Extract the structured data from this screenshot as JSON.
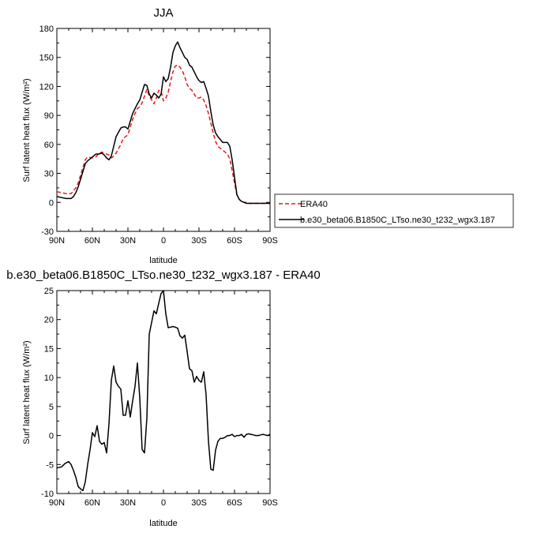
{
  "chart_data": [
    {
      "type": "line",
      "title": "JJA",
      "xlabel": "latitude",
      "ylabel": "Surf latent heat flux (W/m²)",
      "xlim": [
        90,
        -90
      ],
      "ylim": [
        -30,
        180
      ],
      "xticks": [
        90,
        60,
        30,
        0,
        -30,
        -60,
        -90
      ],
      "xtick_labels": [
        "90N",
        "60N",
        "30N",
        "0",
        "30S",
        "60S",
        "90S"
      ],
      "yticks": [
        -30,
        0,
        30,
        60,
        90,
        120,
        150,
        180
      ],
      "ytick_labels": [
        "-30",
        "0",
        "30",
        "60",
        "90",
        "120",
        "150",
        "180"
      ],
      "legend_position": "outside-right",
      "series": [
        {
          "name": "ERA40",
          "color": "#e31a1c",
          "dash": "dashed",
          "x": [
            90,
            86,
            82,
            78,
            76,
            74,
            72,
            70,
            68,
            66,
            64,
            60,
            57,
            55,
            52,
            50,
            48,
            46,
            44,
            42,
            40,
            36,
            34,
            32,
            30,
            28,
            26,
            24,
            22,
            20,
            18,
            16,
            14,
            12,
            10,
            8,
            6,
            4,
            2,
            0,
            -2,
            -4,
            -6,
            -8,
            -10,
            -12,
            -14,
            -16,
            -18,
            -20,
            -22,
            -24,
            -26,
            -28,
            -30,
            -32,
            -34,
            -36,
            -38,
            -40,
            -42,
            -44,
            -46,
            -48,
            -50,
            -52,
            -54,
            -56,
            -58,
            -60,
            -62,
            -64,
            -66,
            -68,
            -70,
            -72,
            -74,
            -76,
            -80,
            -84,
            -88,
            -90
          ],
          "y": [
            11,
            10,
            9,
            9,
            12,
            15,
            20,
            28,
            36,
            44,
            47,
            46,
            47,
            50,
            52,
            51,
            50,
            49,
            46,
            48,
            51,
            60,
            66,
            68,
            70,
            78,
            86,
            92,
            97,
            99,
            103,
            110,
            117,
            110,
            106,
            102,
            108,
            116,
            115,
            105,
            108,
            114,
            125,
            135,
            141,
            142,
            140,
            136,
            130,
            122,
            118,
            116,
            112,
            108,
            108,
            109,
            106,
            100,
            92,
            82,
            72,
            63,
            58,
            56,
            54,
            52,
            50,
            45,
            33,
            20,
            8,
            3,
            1,
            0,
            0,
            -1,
            -1,
            -1,
            -1,
            -1,
            -1,
            -1
          ]
        },
        {
          "name": "b.e30_beta06.B1850C_LTso.ne30_t232_wgx3.187",
          "color": "#000000",
          "dash": "solid",
          "x": [
            90,
            86,
            82,
            78,
            76,
            74,
            72,
            70,
            68,
            66,
            64,
            60,
            57,
            55,
            52,
            50,
            48,
            46,
            44,
            42,
            40,
            36,
            34,
            32,
            30,
            28,
            26,
            24,
            22,
            20,
            18,
            16,
            14,
            12,
            10,
            8,
            6,
            4,
            2,
            0,
            -2,
            -4,
            -6,
            -8,
            -10,
            -12,
            -14,
            -16,
            -18,
            -20,
            -22,
            -24,
            -26,
            -28,
            -30,
            -32,
            -34,
            -36,
            -38,
            -40,
            -42,
            -44,
            -46,
            -48,
            -50,
            -52,
            -54,
            -56,
            -58,
            -60,
            -62,
            -64,
            -66,
            -68,
            -70,
            -72,
            -74,
            -76,
            -80,
            -84,
            -88,
            -90
          ],
          "y": [
            6,
            5,
            4,
            4,
            6,
            10,
            16,
            24,
            32,
            40,
            43,
            47,
            50,
            50,
            51,
            49,
            46,
            44,
            48,
            58,
            68,
            77,
            78,
            78,
            76,
            84,
            92,
            97,
            102,
            106,
            114,
            122,
            121,
            112,
            108,
            113,
            111,
            108,
            112,
            130,
            125,
            128,
            140,
            155,
            162,
            166,
            160,
            155,
            150,
            148,
            142,
            140,
            135,
            130,
            126,
            124,
            125,
            118,
            110,
            94,
            80,
            72,
            68,
            65,
            62,
            62,
            62,
            58,
            44,
            26,
            8,
            3,
            1,
            0,
            -1,
            -1,
            -1,
            -1,
            -1,
            -1,
            -1,
            -1
          ]
        }
      ]
    },
    {
      "type": "line",
      "title": "b.e30_beta06.B1850C_LTso.ne30_t232_wgx3.187 - ERA40",
      "xlabel": "latitude",
      "ylabel": "Surf latent heat flux (W/m²)",
      "xlim": [
        90,
        -90
      ],
      "ylim": [
        -10,
        25
      ],
      "xticks": [
        90,
        60,
        30,
        0,
        -30,
        -60,
        -90
      ],
      "xtick_labels": [
        "90N",
        "60N",
        "30N",
        "0",
        "30S",
        "60S",
        "90S"
      ],
      "yticks": [
        -10,
        -5,
        0,
        5,
        10,
        15,
        20,
        25
      ],
      "ytick_labels": [
        "-10",
        "-5",
        "0",
        "5",
        "10",
        "15",
        "20",
        "25"
      ],
      "series": [
        {
          "color": "#000000",
          "x": [
            90,
            86,
            83,
            80,
            78,
            76,
            74,
            72,
            70,
            68,
            66,
            64,
            62,
            60,
            58,
            56,
            54,
            52,
            50,
            48,
            46,
            44,
            42,
            40,
            38,
            36,
            34,
            32,
            30,
            28,
            26,
            24,
            22,
            20,
            18,
            16,
            14,
            12,
            10,
            8,
            6,
            4,
            2,
            0,
            -2,
            -4,
            -6,
            -8,
            -10,
            -12,
            -14,
            -16,
            -18,
            -20,
            -22,
            -24,
            -26,
            -28,
            -30,
            -32,
            -34,
            -36,
            -38,
            -40,
            -42,
            -44,
            -46,
            -48,
            -50,
            -52,
            -54,
            -56,
            -58,
            -60,
            -62,
            -64,
            -66,
            -68,
            -70,
            -72,
            -74,
            -76,
            -78,
            -80,
            -82,
            -84,
            -86,
            -88,
            -90
          ],
          "y": [
            -5.6,
            -5.4,
            -4.8,
            -4.5,
            -5.0,
            -6.0,
            -7.2,
            -8.8,
            -9.2,
            -9.5,
            -8.0,
            -5.0,
            -2.5,
            0.5,
            -0.2,
            1.7,
            -1.0,
            -1.5,
            -1.2,
            -3.0,
            2.0,
            9.5,
            12.0,
            9.2,
            8.5,
            8.0,
            3.5,
            3.5,
            6.0,
            3.2,
            6.0,
            8.5,
            12.5,
            6.5,
            -2.4,
            -3.0,
            3.0,
            17.5,
            19.5,
            21.5,
            21.0,
            22.8,
            24.5,
            25.0,
            21.0,
            18.6,
            18.7,
            18.8,
            18.7,
            18.5,
            17.2,
            16.8,
            17.3,
            14.5,
            11.5,
            11.2,
            9.2,
            10.2,
            9.5,
            9.2,
            11.0,
            7.0,
            -1.0,
            -5.8,
            -6.0,
            -2.5,
            -1.0,
            -0.5,
            -0.5,
            -0.3,
            0.0,
            0.0,
            0.2,
            -0.2,
            0.0,
            0.0,
            0.2,
            -0.3,
            0.2,
            0.3,
            0.2,
            0.1,
            0.0,
            0.0,
            0.1,
            0.2,
            0.1,
            0.0,
            0.2
          ]
        }
      ]
    }
  ]
}
